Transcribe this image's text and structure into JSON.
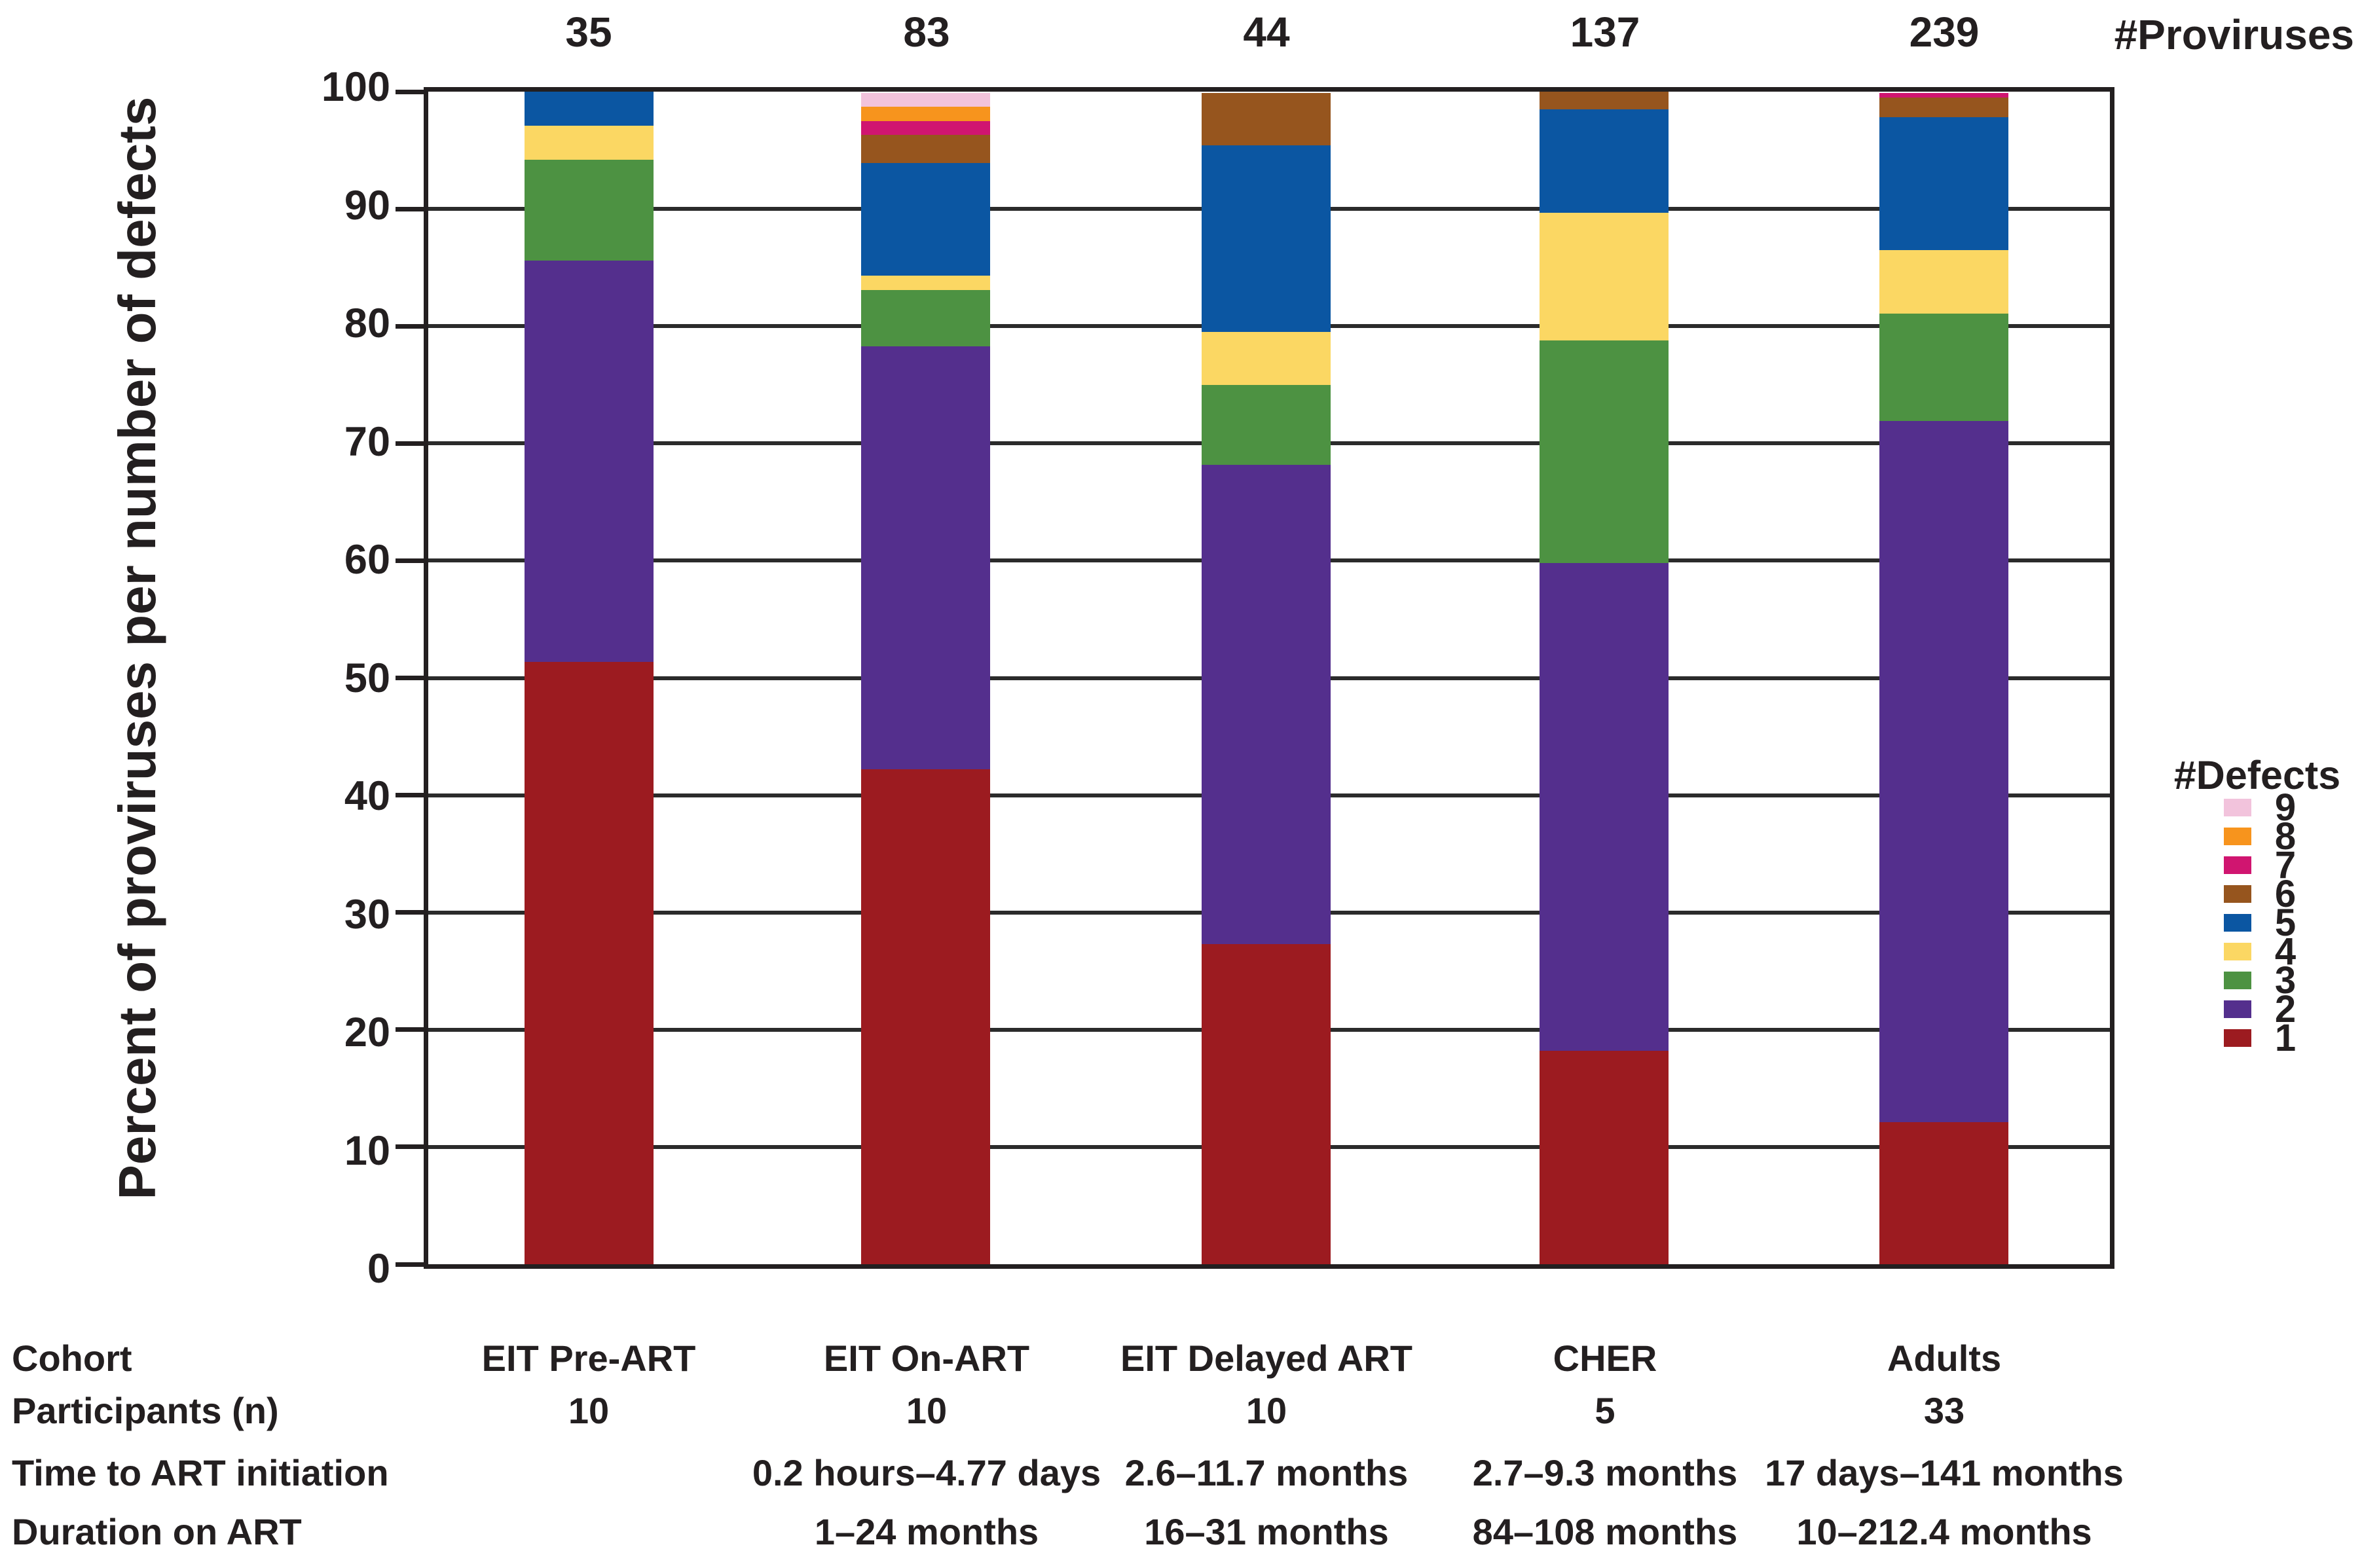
{
  "figure": {
    "proviruses_header": "#Proviruses",
    "legend": {
      "title": "#Defects",
      "labels": [
        "9",
        "8",
        "7",
        "6",
        "5",
        "4",
        "3",
        "2",
        "1"
      ]
    }
  },
  "chart_data": {
    "type": "bar",
    "stacked": true,
    "title": "",
    "xlabel": "",
    "ylabel": "Percent of proviruses per number of defects",
    "ylim": [
      0,
      100
    ],
    "yticks": [
      0,
      10,
      20,
      30,
      40,
      50,
      60,
      70,
      80,
      90,
      100
    ],
    "grid": true,
    "legend_title": "#Defects",
    "legend_position": "right",
    "categories": [
      "EIT Pre-ART",
      "EIT On-ART",
      "EIT Delayed ART",
      "CHER",
      "Adults"
    ],
    "proviruses": [
      35,
      83,
      44,
      137,
      239
    ],
    "series": [
      {
        "name": "1",
        "color": "#9C1B20",
        "values": [
          51.4,
          42.2,
          27.3,
          18.2,
          12.1
        ]
      },
      {
        "name": "2",
        "color": "#542F8D",
        "values": [
          34.3,
          36.1,
          40.9,
          41.6,
          59.8
        ]
      },
      {
        "name": "3",
        "color": "#4D9242",
        "values": [
          8.6,
          4.8,
          6.8,
          19.0,
          9.2
        ]
      },
      {
        "name": "4",
        "color": "#FBD763",
        "values": [
          2.9,
          1.2,
          4.5,
          10.9,
          5.4
        ]
      },
      {
        "name": "5",
        "color": "#0B56A2",
        "values": [
          2.9,
          9.6,
          15.9,
          8.8,
          11.3
        ]
      },
      {
        "name": "6",
        "color": "#96551E",
        "values": [
          0,
          2.4,
          4.5,
          1.5,
          1.7
        ]
      },
      {
        "name": "7",
        "color": "#D01570",
        "values": [
          0,
          1.2,
          0,
          0,
          0.4
        ]
      },
      {
        "name": "8",
        "color": "#F7941D",
        "values": [
          0,
          1.2,
          0,
          0,
          0
        ]
      },
      {
        "name": "9",
        "color": "#F2C3DC",
        "values": [
          0,
          1.2,
          0,
          0,
          0
        ]
      }
    ]
  },
  "table": {
    "rows": [
      {
        "label": "Cohort",
        "values": [
          "EIT Pre-ART",
          "EIT On-ART",
          "EIT Delayed ART",
          "CHER",
          "Adults"
        ]
      },
      {
        "label": "Participants (n)",
        "values": [
          "10",
          "10",
          "10",
          "5",
          "33"
        ]
      },
      {
        "label": "Time to ART initiation",
        "values": [
          "",
          "0.2 hours–4.77 days",
          "2.6–11.7 months",
          "2.7–9.3 months",
          "17 days–141 months"
        ]
      },
      {
        "label": "Duration on ART",
        "values": [
          "",
          "1–24 months",
          "16–31 months",
          "84–108 months",
          "10–212.4 months"
        ]
      }
    ]
  }
}
